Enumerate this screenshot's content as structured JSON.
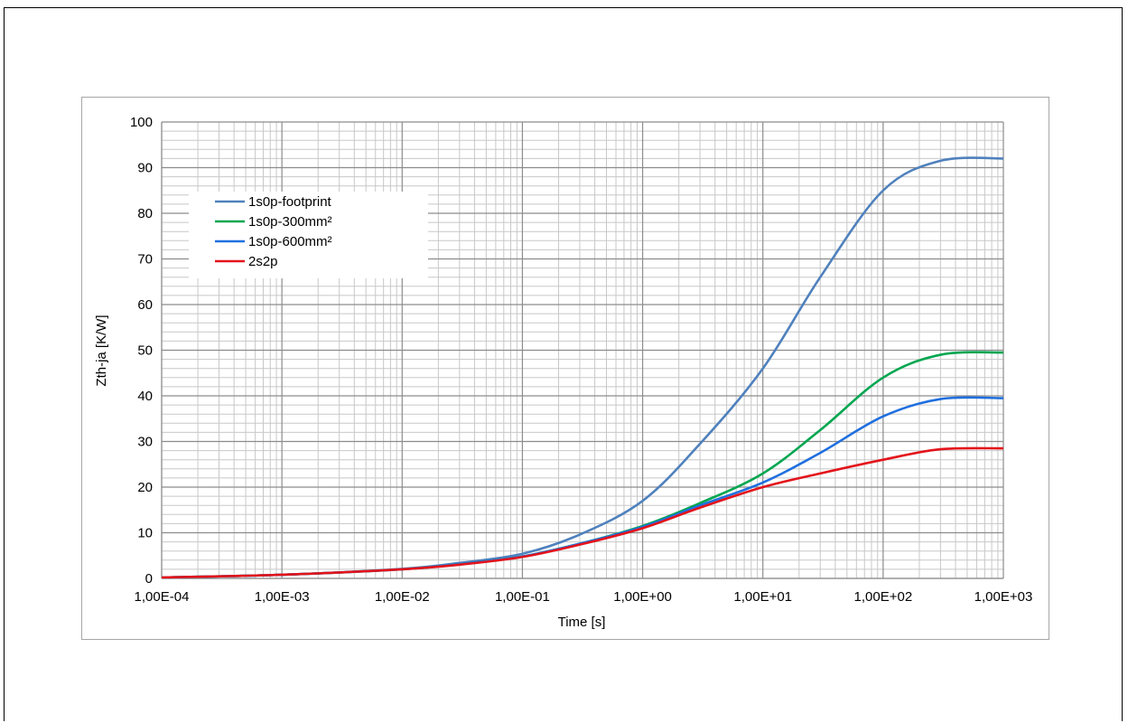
{
  "chart_data": {
    "type": "line",
    "xlabel": "Time [s]",
    "ylabel": "Zth-ja [K/W]",
    "x_scale": "log",
    "xlim": [
      0.0001,
      1000
    ],
    "ylim": [
      0,
      100
    ],
    "x_tick_labels": [
      "1,00E-04",
      "1,00E-03",
      "1,00E-02",
      "1,00E-01",
      "1,00E+00",
      "1,00E+01",
      "1,00E+02",
      "1,00E+03"
    ],
    "y_ticks": [
      0,
      10,
      20,
      30,
      40,
      50,
      60,
      70,
      80,
      90,
      100
    ],
    "grid": true,
    "legend_position": "upper-left",
    "series": [
      {
        "name": "1s0p-footprint",
        "color": "#4f81bd",
        "x": [
          0.0001,
          0.001,
          0.01,
          0.03,
          0.1,
          0.3,
          1,
          3,
          10,
          30,
          100,
          300,
          1000
        ],
        "y": [
          0.2,
          0.8,
          2.1,
          3.4,
          5.4,
          9.6,
          17,
          29.5,
          46,
          66,
          85,
          91.5,
          92
        ]
      },
      {
        "name": "1s0p-300mm²",
        "color": "#00a650",
        "x": [
          0.0001,
          0.001,
          0.01,
          0.03,
          0.1,
          0.3,
          1,
          3,
          10,
          30,
          100,
          300,
          1000
        ],
        "y": [
          0.2,
          0.8,
          2.0,
          3.1,
          4.8,
          7.6,
          11.5,
          16.5,
          23,
          32.5,
          44,
          49,
          49.5
        ]
      },
      {
        "name": "1s0p-600mm²",
        "color": "#1f6fdf",
        "x": [
          0.0001,
          0.001,
          0.01,
          0.03,
          0.1,
          0.3,
          1,
          3,
          10,
          30,
          100,
          300,
          1000
        ],
        "y": [
          0.2,
          0.8,
          2.0,
          3.1,
          4.8,
          7.6,
          11.3,
          16.0,
          21,
          27.5,
          35.5,
          39.3,
          39.5
        ]
      },
      {
        "name": "2s2p",
        "color": "#e3141b",
        "x": [
          0.0001,
          0.001,
          0.01,
          0.03,
          0.1,
          0.3,
          1,
          3,
          10,
          30,
          100,
          300,
          1000
        ],
        "y": [
          0.2,
          0.8,
          2.0,
          3.0,
          4.7,
          7.4,
          11.0,
          15.5,
          20,
          23,
          26,
          28.3,
          28.5
        ]
      }
    ]
  }
}
